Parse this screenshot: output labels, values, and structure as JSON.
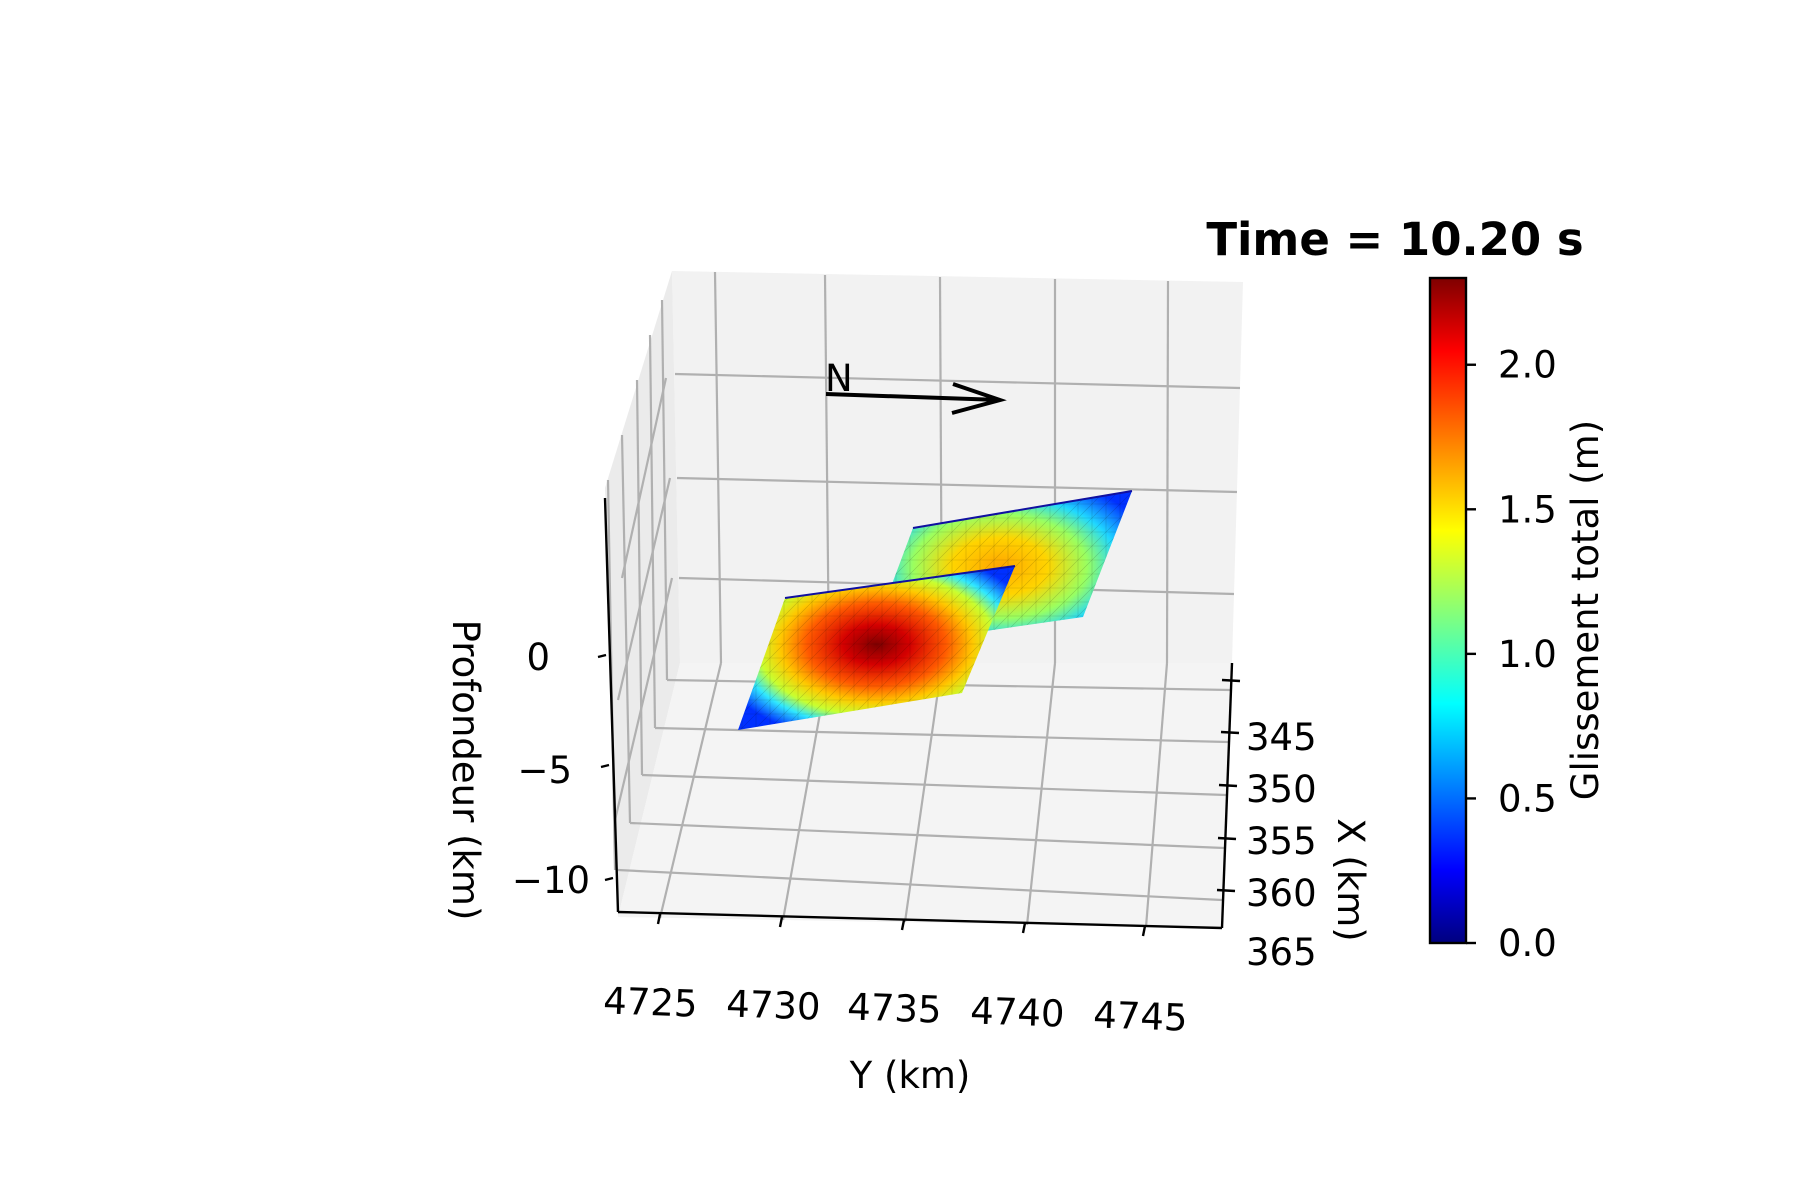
{
  "chart_data": {
    "type": "surface",
    "title": "Time = 10.20 s",
    "xlabel": "Y (km)",
    "ylabel": "X (km)",
    "zlabel": "Profondeur (km)",
    "y_ticks": [
      "4725",
      "4730",
      "4735",
      "4740",
      "4745"
    ],
    "x_ticks": [
      "345",
      "350",
      "355",
      "360",
      "365"
    ],
    "z_ticks": [
      "0",
      "−5",
      "−10"
    ],
    "north_label": "N",
    "colorbar": {
      "label": "Glissement total (m)",
      "ticks": [
        "0.0",
        "0.5",
        "1.0",
        "1.5",
        "2.0"
      ],
      "tick_values": [
        0.0,
        0.5,
        1.0,
        1.5,
        2.0
      ],
      "range": [
        0.0,
        2.3
      ],
      "colormap": "jet"
    },
    "series": [
      {
        "peak_slip": 2.3
      },
      {
        "peak_slip": 1.6
      }
    ],
    "grid": true
  }
}
